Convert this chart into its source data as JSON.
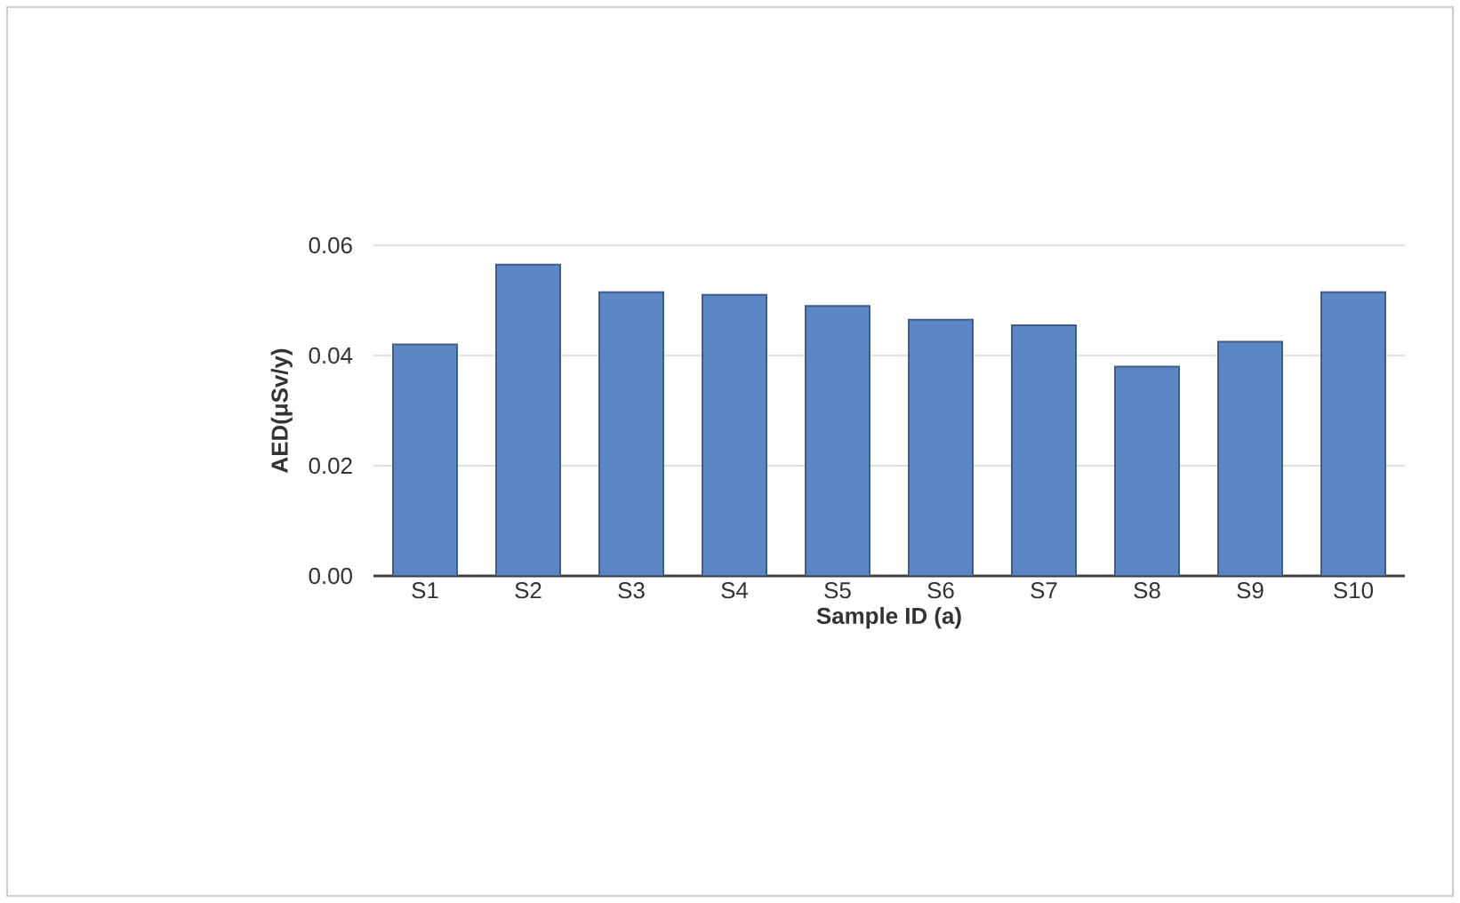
{
  "chart_data": {
    "type": "bar",
    "xlabel": "Sample ID (a)",
    "ylabel": "AED(μSv/y)",
    "categories": [
      "S1",
      "S2",
      "S3",
      "S4",
      "S5",
      "S6",
      "S7",
      "S8",
      "S9",
      "S10"
    ],
    "values": [
      0.042,
      0.0565,
      0.0515,
      0.051,
      0.049,
      0.0465,
      0.0455,
      0.038,
      0.0425,
      0.0515
    ],
    "color": "#5b87c4",
    "ylim": [
      0,
      0.06
    ],
    "yticks": [
      {
        "value": 0,
        "label": "0.00"
      },
      {
        "value": 0.02,
        "label": "0.02"
      },
      {
        "value": 0.04,
        "label": "0.04"
      },
      {
        "value": 0.06,
        "label": "0.06"
      }
    ],
    "grid": "y"
  }
}
